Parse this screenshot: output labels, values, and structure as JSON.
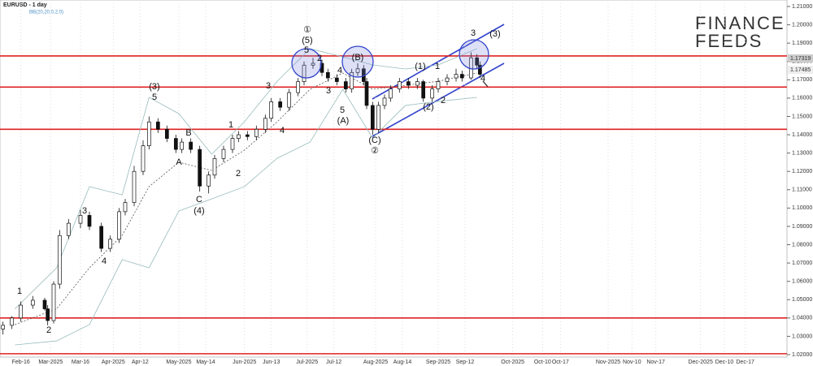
{
  "chart_data": {
    "type": "candlestick",
    "title": "EURUSD - 1 day",
    "indicator": "BB(20,20,0,2,0)",
    "logo": [
      "FINANCE",
      "FEEDS"
    ],
    "price_labels": [
      "1.17319",
      "1.17485"
    ],
    "xlim": [
      0,
      264
    ],
    "ylim": [
      1.02,
      1.21
    ],
    "grid": true,
    "yticks": [
      {
        "value": 1.02,
        "label": "1.02000"
      },
      {
        "value": 1.03,
        "label": "1.03000"
      },
      {
        "value": 1.04,
        "label": "1.04000"
      },
      {
        "value": 1.05,
        "label": "1.05000"
      },
      {
        "value": 1.06,
        "label": "1.06000"
      },
      {
        "value": 1.07,
        "label": "1.07000"
      },
      {
        "value": 1.08,
        "label": "1.08000"
      },
      {
        "value": 1.09,
        "label": "1.09000"
      },
      {
        "value": 1.1,
        "label": "1.10000"
      },
      {
        "value": 1.11,
        "label": "1.11000"
      },
      {
        "value": 1.12,
        "label": "1.12000"
      },
      {
        "value": 1.13,
        "label": "1.13000"
      },
      {
        "value": 1.14,
        "label": "1.14000"
      },
      {
        "value": 1.15,
        "label": "1.15000"
      },
      {
        "value": 1.16,
        "label": "1.16000"
      },
      {
        "value": 1.17,
        "label": "1.17000"
      },
      {
        "value": 1.18,
        "label": "1.18000"
      },
      {
        "value": 1.19,
        "label": "1.19000"
      },
      {
        "value": 1.2,
        "label": "1.20000"
      },
      {
        "value": 1.21,
        "label": "1.21000"
      }
    ],
    "xticks": [
      {
        "value": 7,
        "label": "Feb-16"
      },
      {
        "value": 17,
        "label": "Mar-2025"
      },
      {
        "value": 27,
        "label": "Mar-16"
      },
      {
        "value": 38,
        "label": "Apr-2025"
      },
      {
        "value": 47,
        "label": "Apr-12"
      },
      {
        "value": 60,
        "label": "May-2025"
      },
      {
        "value": 69,
        "label": "May-14"
      },
      {
        "value": 82,
        "label": "Jun-2025"
      },
      {
        "value": 91,
        "label": "Jun-13"
      },
      {
        "value": 103,
        "label": "Jul-2025"
      },
      {
        "value": 112,
        "label": "Jul-12"
      },
      {
        "value": 126,
        "label": "Aug-2025"
      },
      {
        "value": 135,
        "label": "Aug-14"
      },
      {
        "value": 147,
        "label": "Sep-2025"
      },
      {
        "value": 156,
        "label": "Sep-12"
      },
      {
        "value": 172,
        "label": "Oct-2025"
      },
      {
        "value": 182,
        "label": "Oct-10"
      },
      {
        "value": 188,
        "label": "Oct-17"
      },
      {
        "value": 204,
        "label": "Nov-2025"
      },
      {
        "value": 212,
        "label": "Nov-10"
      },
      {
        "value": 220,
        "label": "Nov-17"
      },
      {
        "value": 235,
        "label": "Dec-2025"
      },
      {
        "value": 243,
        "label": "Dec-10"
      },
      {
        "value": 250,
        "label": "Dec-17"
      }
    ],
    "x": [
      1,
      4,
      7,
      11,
      15,
      16,
      18,
      20,
      23,
      27,
      30,
      34,
      37,
      40,
      42,
      45,
      48,
      50,
      53,
      56,
      59,
      61,
      64,
      67,
      70,
      72,
      75,
      78,
      80,
      83,
      86,
      89,
      91,
      94,
      97,
      100,
      102,
      105,
      108,
      110,
      113,
      116,
      118,
      120,
      122,
      123,
      125,
      127,
      129,
      131,
      134,
      137,
      140,
      142,
      145,
      147,
      150,
      153,
      155,
      158,
      160,
      161
    ],
    "open": [
      1.034,
      1.036,
      1.04,
      1.047,
      1.0497,
      1.045,
      1.0386,
      1.0585,
      1.085,
      1.0917,
      1.096,
      1.09,
      1.078,
      1.083,
      1.098,
      1.103,
      1.12,
      1.134,
      1.147,
      1.143,
      1.138,
      1.132,
      1.136,
      1.132,
      1.112,
      1.118,
      1.127,
      1.132,
      1.138,
      1.14,
      1.139,
      1.143,
      1.149,
      1.158,
      1.155,
      1.163,
      1.169,
      1.178,
      1.179,
      1.174,
      1.171,
      1.169,
      1.165,
      1.174,
      1.176,
      1.169,
      1.156,
      1.143,
      1.156,
      1.16,
      1.165,
      1.169,
      1.167,
      1.169,
      1.16,
      1.165,
      1.169,
      1.171,
      1.173,
      1.171,
      1.182,
      1.178
    ],
    "high": [
      1.038,
      1.041,
      1.049,
      1.052,
      1.051,
      1.047,
      1.06,
      1.088,
      1.094,
      1.099,
      1.098,
      1.092,
      1.085,
      1.1,
      1.105,
      1.123,
      1.137,
      1.15,
      1.149,
      1.145,
      1.14,
      1.138,
      1.138,
      1.134,
      1.12,
      1.129,
      1.134,
      1.14,
      1.142,
      1.142,
      1.145,
      1.151,
      1.16,
      1.16,
      1.165,
      1.171,
      1.18,
      1.182,
      1.181,
      1.176,
      1.173,
      1.171,
      1.176,
      1.179,
      1.178,
      1.171,
      1.158,
      1.158,
      1.162,
      1.167,
      1.171,
      1.171,
      1.171,
      1.17,
      1.167,
      1.171,
      1.173,
      1.176,
      1.175,
      1.185,
      1.184,
      1.18
    ],
    "low": [
      1.031,
      1.034,
      1.038,
      1.045,
      1.044,
      1.036,
      1.037,
      1.056,
      1.083,
      1.089,
      1.088,
      1.076,
      1.076,
      1.081,
      1.096,
      1.101,
      1.118,
      1.132,
      1.141,
      1.136,
      1.13,
      1.13,
      1.13,
      1.109,
      1.108,
      1.116,
      1.125,
      1.13,
      1.136,
      1.137,
      1.137,
      1.141,
      1.147,
      1.153,
      1.153,
      1.161,
      1.167,
      1.176,
      1.172,
      1.169,
      1.167,
      1.163,
      1.163,
      1.172,
      1.167,
      1.154,
      1.14,
      1.141,
      1.154,
      1.158,
      1.163,
      1.165,
      1.165,
      1.158,
      1.158,
      1.163,
      1.167,
      1.169,
      1.169,
      1.17,
      1.176,
      1.171
    ],
    "close": [
      1.036,
      1.04,
      1.047,
      1.0497,
      1.045,
      1.0386,
      1.0585,
      1.085,
      1.0917,
      1.096,
      1.09,
      1.078,
      1.083,
      1.098,
      1.103,
      1.12,
      1.134,
      1.147,
      1.143,
      1.138,
      1.132,
      1.136,
      1.132,
      1.112,
      1.118,
      1.127,
      1.132,
      1.138,
      1.14,
      1.139,
      1.143,
      1.149,
      1.158,
      1.155,
      1.163,
      1.169,
      1.178,
      1.179,
      1.174,
      1.171,
      1.169,
      1.165,
      1.174,
      1.176,
      1.169,
      1.156,
      1.143,
      1.156,
      1.16,
      1.165,
      1.169,
      1.167,
      1.169,
      1.16,
      1.165,
      1.169,
      1.171,
      1.173,
      1.171,
      1.182,
      1.178,
      1.173
    ],
    "bands": {
      "x": [
        5,
        19,
        30,
        41,
        50,
        60,
        71,
        82,
        93,
        104,
        115,
        125,
        136,
        147,
        160
      ],
      "upper": [
        1.045,
        1.0674,
        1.1117,
        1.1072,
        1.1604,
        1.1515,
        1.1294,
        1.1471,
        1.1692,
        1.187,
        1.1825,
        1.1781,
        1.1759,
        1.1781,
        1.187
      ],
      "middle": [
        1.0364,
        1.045,
        1.0674,
        1.0851,
        1.1117,
        1.125,
        1.1205,
        1.1316,
        1.1471,
        1.1648,
        1.1737,
        1.1648,
        1.167,
        1.1692,
        1.1737
      ],
      "lower": [
        1.0253,
        1.0275,
        1.0364,
        1.0718,
        1.0674,
        1.0984,
        1.105,
        1.1117,
        1.1272,
        1.136,
        1.1648,
        1.1382,
        1.156,
        1.1582,
        1.1604
      ]
    },
    "levels": [
      1.183,
      1.166,
      1.143,
      1.04,
      1.0205
    ],
    "annotations": [
      "1",
      "2",
      "3",
      "4",
      "(3)",
      "5",
      "B",
      "A",
      "C",
      "(4)",
      "1",
      "2",
      "3",
      "4",
      "①",
      "(5)",
      "5",
      "2",
      "4",
      "3",
      "5",
      "(A)",
      "(B)",
      "(C)",
      "②",
      "(1)",
      "1",
      "(2)",
      "2",
      "3",
      "(3)",
      "4"
    ]
  }
}
